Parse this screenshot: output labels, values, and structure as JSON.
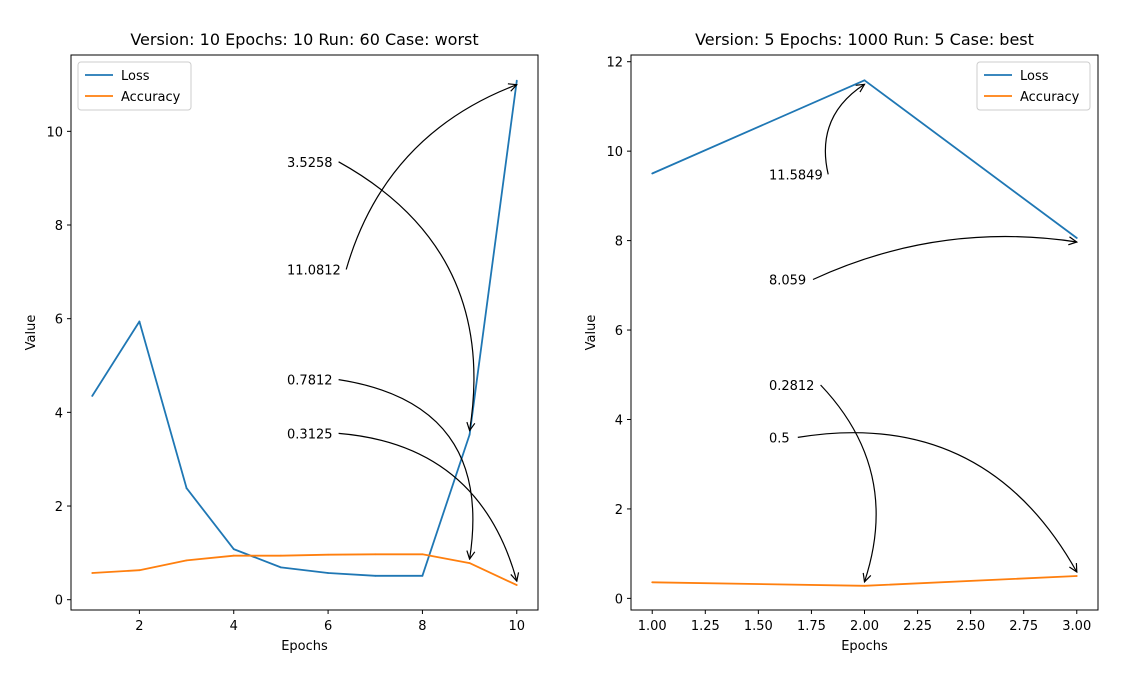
{
  "colors": {
    "loss": "#1f77b4",
    "accuracy": "#ff7f0e",
    "axis": "#000000",
    "annotation_arrow": "#000000"
  },
  "chart_data": [
    {
      "type": "line",
      "title": "Version: 10 Epochs: 10 Run: 60 Case: worst",
      "xlabel": "Epochs",
      "ylabel": "Value",
      "xlim": [
        0.55,
        10.45
      ],
      "ylim": [
        -0.22,
        11.63
      ],
      "xticks": [
        2,
        4,
        6,
        8,
        10
      ],
      "xtick_labels": [
        "2",
        "4",
        "6",
        "8",
        "10"
      ],
      "yticks": [
        0,
        2,
        4,
        6,
        8,
        10
      ],
      "ytick_labels": [
        "0",
        "2",
        "4",
        "6",
        "8",
        "10"
      ],
      "grid": false,
      "legend_position": "top-left",
      "x": [
        1,
        2,
        3,
        4,
        5,
        6,
        7,
        8,
        9,
        10
      ],
      "series": [
        {
          "name": "Loss",
          "color_key": "loss",
          "values": [
            4.35,
            5.94,
            2.38,
            1.08,
            0.69,
            0.57,
            0.51,
            0.51,
            3.5258,
            11.0812
          ]
        },
        {
          "name": "Accuracy",
          "color_key": "accuracy",
          "values": [
            0.57,
            0.63,
            0.84,
            0.94,
            0.94,
            0.96,
            0.97,
            0.97,
            0.7812,
            0.3125
          ]
        }
      ],
      "annotations": [
        {
          "text": "3.5258",
          "text_pos": [
            5.13,
            9.35
          ],
          "point": [
            9,
            3.5258
          ],
          "curve": 0.35
        },
        {
          "text": "11.0812",
          "text_pos": [
            5.13,
            7.05
          ],
          "point": [
            10,
            11.0812
          ],
          "curve": 0.25
        },
        {
          "text": "0.7812",
          "text_pos": [
            5.13,
            4.7
          ],
          "point": [
            9,
            0.7812
          ],
          "curve": 0.5
        },
        {
          "text": "0.3125",
          "text_pos": [
            5.13,
            3.55
          ],
          "point": [
            10,
            0.3125
          ],
          "curve": 0.35
        }
      ]
    },
    {
      "type": "line",
      "title": "Version: 5 Epochs: 1000 Run: 5 Case: best",
      "xlabel": "Epochs",
      "ylabel": "Value",
      "xlim": [
        0.9,
        3.1
      ],
      "ylim": [
        -0.26,
        12.15
      ],
      "xticks": [
        1.0,
        1.25,
        1.5,
        1.75,
        2.0,
        2.25,
        2.5,
        2.75,
        3.0
      ],
      "xtick_labels": [
        "1.00",
        "1.25",
        "1.50",
        "1.75",
        "2.00",
        "2.25",
        "2.50",
        "2.75",
        "3.00"
      ],
      "yticks": [
        0,
        2,
        4,
        6,
        8,
        10,
        12
      ],
      "ytick_labels": [
        "0",
        "2",
        "4",
        "6",
        "8",
        "10",
        "12"
      ],
      "grid": false,
      "legend_position": "top-right",
      "x": [
        1,
        2,
        3
      ],
      "series": [
        {
          "name": "Loss",
          "color_key": "loss",
          "values": [
            9.5,
            11.5849,
            8.059
          ]
        },
        {
          "name": "Accuracy",
          "color_key": "accuracy",
          "values": [
            0.36,
            0.2812,
            0.5
          ]
        }
      ],
      "annotations": [
        {
          "text": "11.5849",
          "text_pos": [
            1.55,
            9.48
          ],
          "point": [
            2,
            11.5849
          ],
          "curve": 0.35
        },
        {
          "text": "8.059",
          "text_pos": [
            1.55,
            7.13
          ],
          "point": [
            3,
            8.059
          ],
          "curve": 0.15
        },
        {
          "text": "0.2812",
          "text_pos": [
            1.55,
            4.77
          ],
          "point": [
            2,
            0.2812
          ],
          "curve": 0.3
        },
        {
          "text": "0.5",
          "text_pos": [
            1.55,
            3.6
          ],
          "point": [
            3,
            0.5
          ],
          "curve": 0.35
        }
      ]
    }
  ]
}
